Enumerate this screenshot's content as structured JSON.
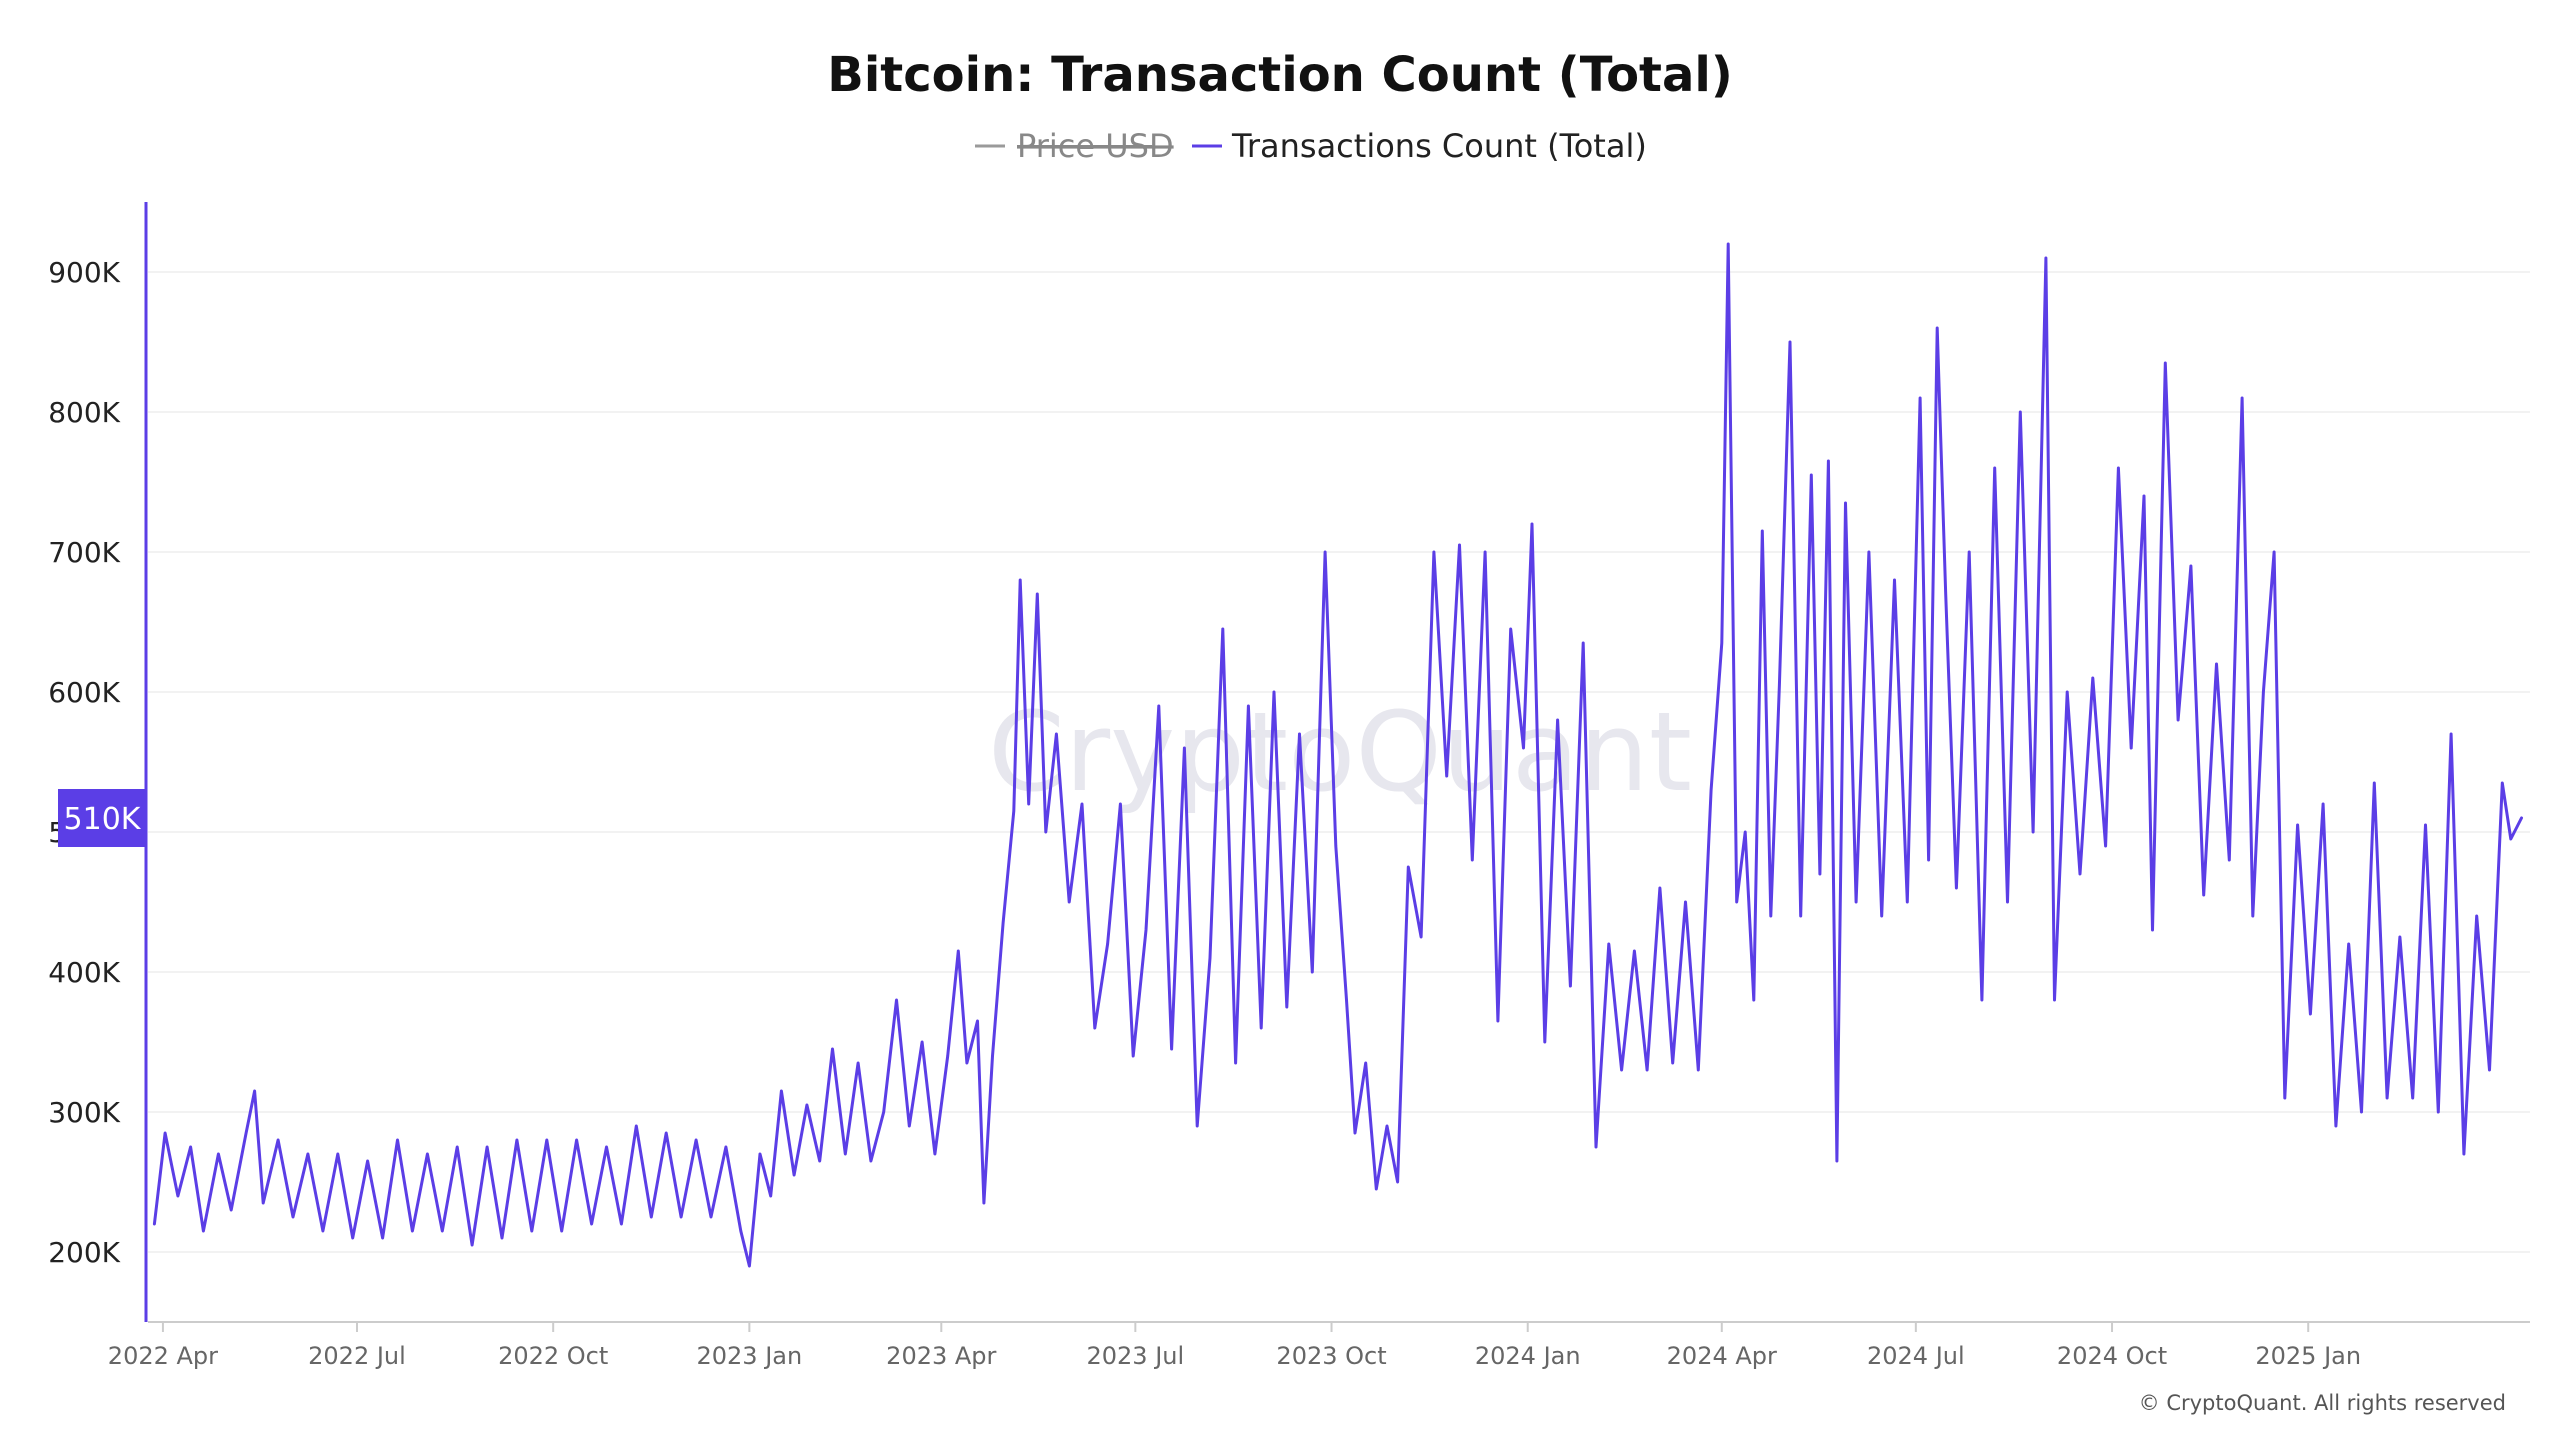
{
  "chart_data": {
    "type": "line",
    "title": "Bitcoin: Transaction Count (Total)",
    "legend_placement": "top-center",
    "legend": [
      {
        "name": "Price USD",
        "color": "#9a9a9a",
        "hidden": true
      },
      {
        "name": "Transactions Count (Total)",
        "color": "#5b3ee6",
        "hidden": false
      }
    ],
    "ylim": [
      150000,
      950000
    ],
    "y_ticks": [
      200000,
      300000,
      400000,
      500000,
      600000,
      700000,
      800000,
      900000
    ],
    "y_tick_labels": [
      "200K",
      "300K",
      "400K",
      "500K",
      "600K",
      "700K",
      "800K",
      "900K"
    ],
    "x_ticks": [
      "2022-04-01",
      "2022-07-01",
      "2022-10-01",
      "2023-01-01",
      "2023-04-01",
      "2023-07-01",
      "2023-10-01",
      "2024-01-01",
      "2024-04-01",
      "2024-07-01",
      "2024-10-01",
      "2025-01-01"
    ],
    "x_tick_labels": [
      "2022 Apr",
      "2022 Jul",
      "2022 Oct",
      "2023 Jan",
      "2023 Apr",
      "2023 Jul",
      "2023 Oct",
      "2024 Jan",
      "2024 Apr",
      "2024 Jul",
      "2024 Oct",
      "2025 Jan"
    ],
    "x_range": [
      "2022-03-25",
      "2025-04-15"
    ],
    "grid": true,
    "current_value_label": "510K",
    "current_value": 510000,
    "watermark": "CryptoQuant",
    "series": [
      {
        "name": "Transactions Count (Total)",
        "color": "#5b3ee6",
        "points": [
          [
            "2022-03-28",
            220000
          ],
          [
            "2022-04-02",
            285000
          ],
          [
            "2022-04-08",
            240000
          ],
          [
            "2022-04-14",
            275000
          ],
          [
            "2022-04-20",
            215000
          ],
          [
            "2022-04-27",
            270000
          ],
          [
            "2022-05-03",
            230000
          ],
          [
            "2022-05-10",
            285000
          ],
          [
            "2022-05-14",
            315000
          ],
          [
            "2022-05-18",
            235000
          ],
          [
            "2022-05-25",
            280000
          ],
          [
            "2022-06-01",
            225000
          ],
          [
            "2022-06-08",
            270000
          ],
          [
            "2022-06-15",
            215000
          ],
          [
            "2022-06-22",
            270000
          ],
          [
            "2022-06-29",
            210000
          ],
          [
            "2022-07-06",
            265000
          ],
          [
            "2022-07-13",
            210000
          ],
          [
            "2022-07-20",
            280000
          ],
          [
            "2022-07-27",
            215000
          ],
          [
            "2022-08-03",
            270000
          ],
          [
            "2022-08-10",
            215000
          ],
          [
            "2022-08-17",
            275000
          ],
          [
            "2022-08-24",
            205000
          ],
          [
            "2022-08-31",
            275000
          ],
          [
            "2022-09-07",
            210000
          ],
          [
            "2022-09-14",
            280000
          ],
          [
            "2022-09-21",
            215000
          ],
          [
            "2022-09-28",
            280000
          ],
          [
            "2022-10-05",
            215000
          ],
          [
            "2022-10-12",
            280000
          ],
          [
            "2022-10-19",
            220000
          ],
          [
            "2022-10-26",
            275000
          ],
          [
            "2022-11-02",
            220000
          ],
          [
            "2022-11-09",
            290000
          ],
          [
            "2022-11-16",
            225000
          ],
          [
            "2022-11-23",
            285000
          ],
          [
            "2022-11-30",
            225000
          ],
          [
            "2022-12-07",
            280000
          ],
          [
            "2022-12-14",
            225000
          ],
          [
            "2022-12-21",
            275000
          ],
          [
            "2022-12-28",
            215000
          ],
          [
            "2023-01-01",
            190000
          ],
          [
            "2023-01-06",
            270000
          ],
          [
            "2023-01-11",
            240000
          ],
          [
            "2023-01-16",
            315000
          ],
          [
            "2023-01-22",
            255000
          ],
          [
            "2023-01-28",
            305000
          ],
          [
            "2023-02-03",
            265000
          ],
          [
            "2023-02-09",
            345000
          ],
          [
            "2023-02-15",
            270000
          ],
          [
            "2023-02-21",
            335000
          ],
          [
            "2023-02-27",
            265000
          ],
          [
            "2023-03-05",
            300000
          ],
          [
            "2023-03-11",
            380000
          ],
          [
            "2023-03-17",
            290000
          ],
          [
            "2023-03-23",
            350000
          ],
          [
            "2023-03-29",
            270000
          ],
          [
            "2023-04-04",
            340000
          ],
          [
            "2023-04-09",
            415000
          ],
          [
            "2023-04-13",
            335000
          ],
          [
            "2023-04-18",
            365000
          ],
          [
            "2023-04-21",
            235000
          ],
          [
            "2023-04-25",
            340000
          ],
          [
            "2023-04-30",
            435000
          ],
          [
            "2023-05-05",
            515000
          ],
          [
            "2023-05-08",
            680000
          ],
          [
            "2023-05-12",
            520000
          ],
          [
            "2023-05-16",
            670000
          ],
          [
            "2023-05-20",
            500000
          ],
          [
            "2023-05-25",
            570000
          ],
          [
            "2023-05-31",
            450000
          ],
          [
            "2023-06-06",
            520000
          ],
          [
            "2023-06-12",
            360000
          ],
          [
            "2023-06-18",
            420000
          ],
          [
            "2023-06-24",
            520000
          ],
          [
            "2023-06-30",
            340000
          ],
          [
            "2023-07-06",
            430000
          ],
          [
            "2023-07-12",
            590000
          ],
          [
            "2023-07-18",
            345000
          ],
          [
            "2023-07-24",
            560000
          ],
          [
            "2023-07-30",
            290000
          ],
          [
            "2023-08-05",
            410000
          ],
          [
            "2023-08-11",
            645000
          ],
          [
            "2023-08-17",
            335000
          ],
          [
            "2023-08-23",
            590000
          ],
          [
            "2023-08-29",
            360000
          ],
          [
            "2023-09-04",
            600000
          ],
          [
            "2023-09-10",
            375000
          ],
          [
            "2023-09-16",
            570000
          ],
          [
            "2023-09-22",
            400000
          ],
          [
            "2023-09-28",
            700000
          ],
          [
            "2023-10-03",
            490000
          ],
          [
            "2023-10-08",
            380000
          ],
          [
            "2023-10-12",
            285000
          ],
          [
            "2023-10-17",
            335000
          ],
          [
            "2023-10-22",
            245000
          ],
          [
            "2023-10-27",
            290000
          ],
          [
            "2023-11-01",
            250000
          ],
          [
            "2023-11-06",
            475000
          ],
          [
            "2023-11-12",
            425000
          ],
          [
            "2023-11-18",
            700000
          ],
          [
            "2023-11-24",
            540000
          ],
          [
            "2023-11-30",
            705000
          ],
          [
            "2023-12-06",
            480000
          ],
          [
            "2023-12-12",
            700000
          ],
          [
            "2023-12-18",
            365000
          ],
          [
            "2023-12-24",
            645000
          ],
          [
            "2023-12-30",
            560000
          ],
          [
            "2024-01-03",
            720000
          ],
          [
            "2024-01-09",
            350000
          ],
          [
            "2024-01-15",
            580000
          ],
          [
            "2024-01-21",
            390000
          ],
          [
            "2024-01-27",
            635000
          ],
          [
            "2024-02-02",
            275000
          ],
          [
            "2024-02-08",
            420000
          ],
          [
            "2024-02-14",
            330000
          ],
          [
            "2024-02-20",
            415000
          ],
          [
            "2024-02-26",
            330000
          ],
          [
            "2024-03-03",
            460000
          ],
          [
            "2024-03-09",
            335000
          ],
          [
            "2024-03-15",
            450000
          ],
          [
            "2024-03-21",
            330000
          ],
          [
            "2024-03-27",
            530000
          ],
          [
            "2024-04-01",
            635000
          ],
          [
            "2024-04-04",
            920000
          ],
          [
            "2024-04-08",
            450000
          ],
          [
            "2024-04-12",
            500000
          ],
          [
            "2024-04-16",
            380000
          ],
          [
            "2024-04-20",
            715000
          ],
          [
            "2024-04-24",
            440000
          ],
          [
            "2024-04-28",
            605000
          ],
          [
            "2024-05-03",
            850000
          ],
          [
            "2024-05-08",
            440000
          ],
          [
            "2024-05-13",
            755000
          ],
          [
            "2024-05-17",
            470000
          ],
          [
            "2024-05-21",
            765000
          ],
          [
            "2024-05-25",
            265000
          ],
          [
            "2024-05-29",
            735000
          ],
          [
            "2024-06-03",
            450000
          ],
          [
            "2024-06-09",
            700000
          ],
          [
            "2024-06-15",
            440000
          ],
          [
            "2024-06-21",
            680000
          ],
          [
            "2024-06-27",
            450000
          ],
          [
            "2024-07-03",
            810000
          ],
          [
            "2024-07-07",
            480000
          ],
          [
            "2024-07-11",
            860000
          ],
          [
            "2024-07-15",
            670000
          ],
          [
            "2024-07-20",
            460000
          ],
          [
            "2024-07-26",
            700000
          ],
          [
            "2024-08-01",
            380000
          ],
          [
            "2024-08-07",
            760000
          ],
          [
            "2024-08-13",
            450000
          ],
          [
            "2024-08-19",
            800000
          ],
          [
            "2024-08-25",
            500000
          ],
          [
            "2024-08-31",
            910000
          ],
          [
            "2024-09-04",
            380000
          ],
          [
            "2024-09-10",
            600000
          ],
          [
            "2024-09-16",
            470000
          ],
          [
            "2024-09-22",
            610000
          ],
          [
            "2024-09-28",
            490000
          ],
          [
            "2024-10-04",
            760000
          ],
          [
            "2024-10-10",
            560000
          ],
          [
            "2024-10-16",
            740000
          ],
          [
            "2024-10-20",
            430000
          ],
          [
            "2024-10-26",
            835000
          ],
          [
            "2024-11-01",
            580000
          ],
          [
            "2024-11-07",
            690000
          ],
          [
            "2024-11-13",
            455000
          ],
          [
            "2024-11-19",
            620000
          ],
          [
            "2024-11-25",
            480000
          ],
          [
            "2024-12-01",
            810000
          ],
          [
            "2024-12-06",
            440000
          ],
          [
            "2024-12-11",
            600000
          ],
          [
            "2024-12-16",
            700000
          ],
          [
            "2024-12-21",
            310000
          ],
          [
            "2024-12-27",
            505000
          ],
          [
            "2025-01-02",
            370000
          ],
          [
            "2025-01-08",
            520000
          ],
          [
            "2025-01-14",
            290000
          ],
          [
            "2025-01-20",
            420000
          ],
          [
            "2025-01-26",
            300000
          ],
          [
            "2025-02-01",
            535000
          ],
          [
            "2025-02-07",
            310000
          ],
          [
            "2025-02-13",
            425000
          ],
          [
            "2025-02-19",
            310000
          ],
          [
            "2025-02-25",
            505000
          ],
          [
            "2025-03-03",
            300000
          ],
          [
            "2025-03-09",
            570000
          ],
          [
            "2025-03-15",
            270000
          ],
          [
            "2025-03-21",
            440000
          ],
          [
            "2025-03-27",
            330000
          ],
          [
            "2025-04-02",
            535000
          ],
          [
            "2025-04-06",
            495000
          ],
          [
            "2025-04-11",
            510000
          ]
        ]
      }
    ]
  },
  "footer": {
    "copyright": "© CryptoQuant. All rights reserved"
  },
  "colors": {
    "line": "#5b3ee6",
    "grid": "#eeeeee",
    "axis": "#cccccc",
    "badge": "#5b3ee6"
  }
}
